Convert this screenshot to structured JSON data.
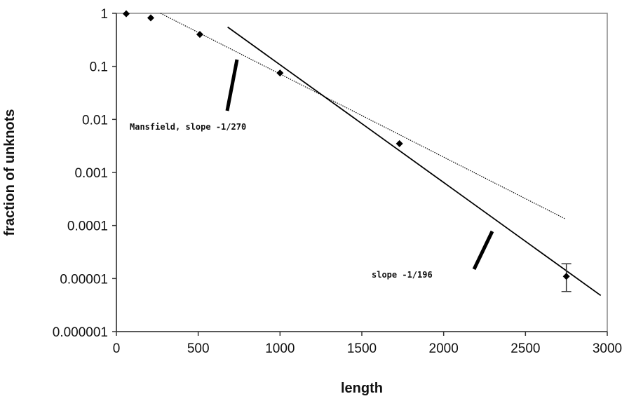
{
  "chart_data": {
    "type": "scatter",
    "title": "",
    "xlabel": "length",
    "ylabel": "fraction of unknots",
    "xlim": [
      0,
      3000
    ],
    "ylim": [
      1e-06,
      1
    ],
    "yscale": "log",
    "grid": false,
    "x_ticks": [
      0,
      500,
      1000,
      1500,
      2000,
      2500,
      3000
    ],
    "x_tick_labels": [
      "0",
      "500",
      "1000",
      "1500",
      "2000",
      "2500",
      "3000"
    ],
    "y_ticks": [
      1e-06,
      1e-05,
      0.0001,
      0.001,
      0.01,
      0.1,
      1
    ],
    "y_tick_labels": [
      "0.000001",
      "0.00001",
      "0.0001",
      "0.001",
      "0.01",
      "0.1",
      "1"
    ],
    "points": [
      {
        "x": 60,
        "y": 0.98
      },
      {
        "x": 210,
        "y": 0.82
      },
      {
        "x": 510,
        "y": 0.4
      },
      {
        "x": 1000,
        "y": 0.075
      },
      {
        "x": 1730,
        "y": 0.0035
      },
      {
        "x": 2750,
        "y": 1.1e-05,
        "err_low": 5.7e-06,
        "err_high": 1.9e-05
      }
    ],
    "fit_lines": [
      {
        "label": "Mansfield, slope -1/270",
        "style": "dotted",
        "x": [
          270,
          2740
        ],
        "y": [
          1.0,
          0.000135
        ]
      },
      {
        "label": "slope -1/196",
        "style": "solid",
        "x": [
          680,
          2960
        ],
        "y": [
          0.55,
          4.8e-06
        ]
      }
    ],
    "annotations": [
      {
        "text": "Mansfield, slope -1/270"
      },
      {
        "text": "slope -1/196"
      }
    ]
  }
}
